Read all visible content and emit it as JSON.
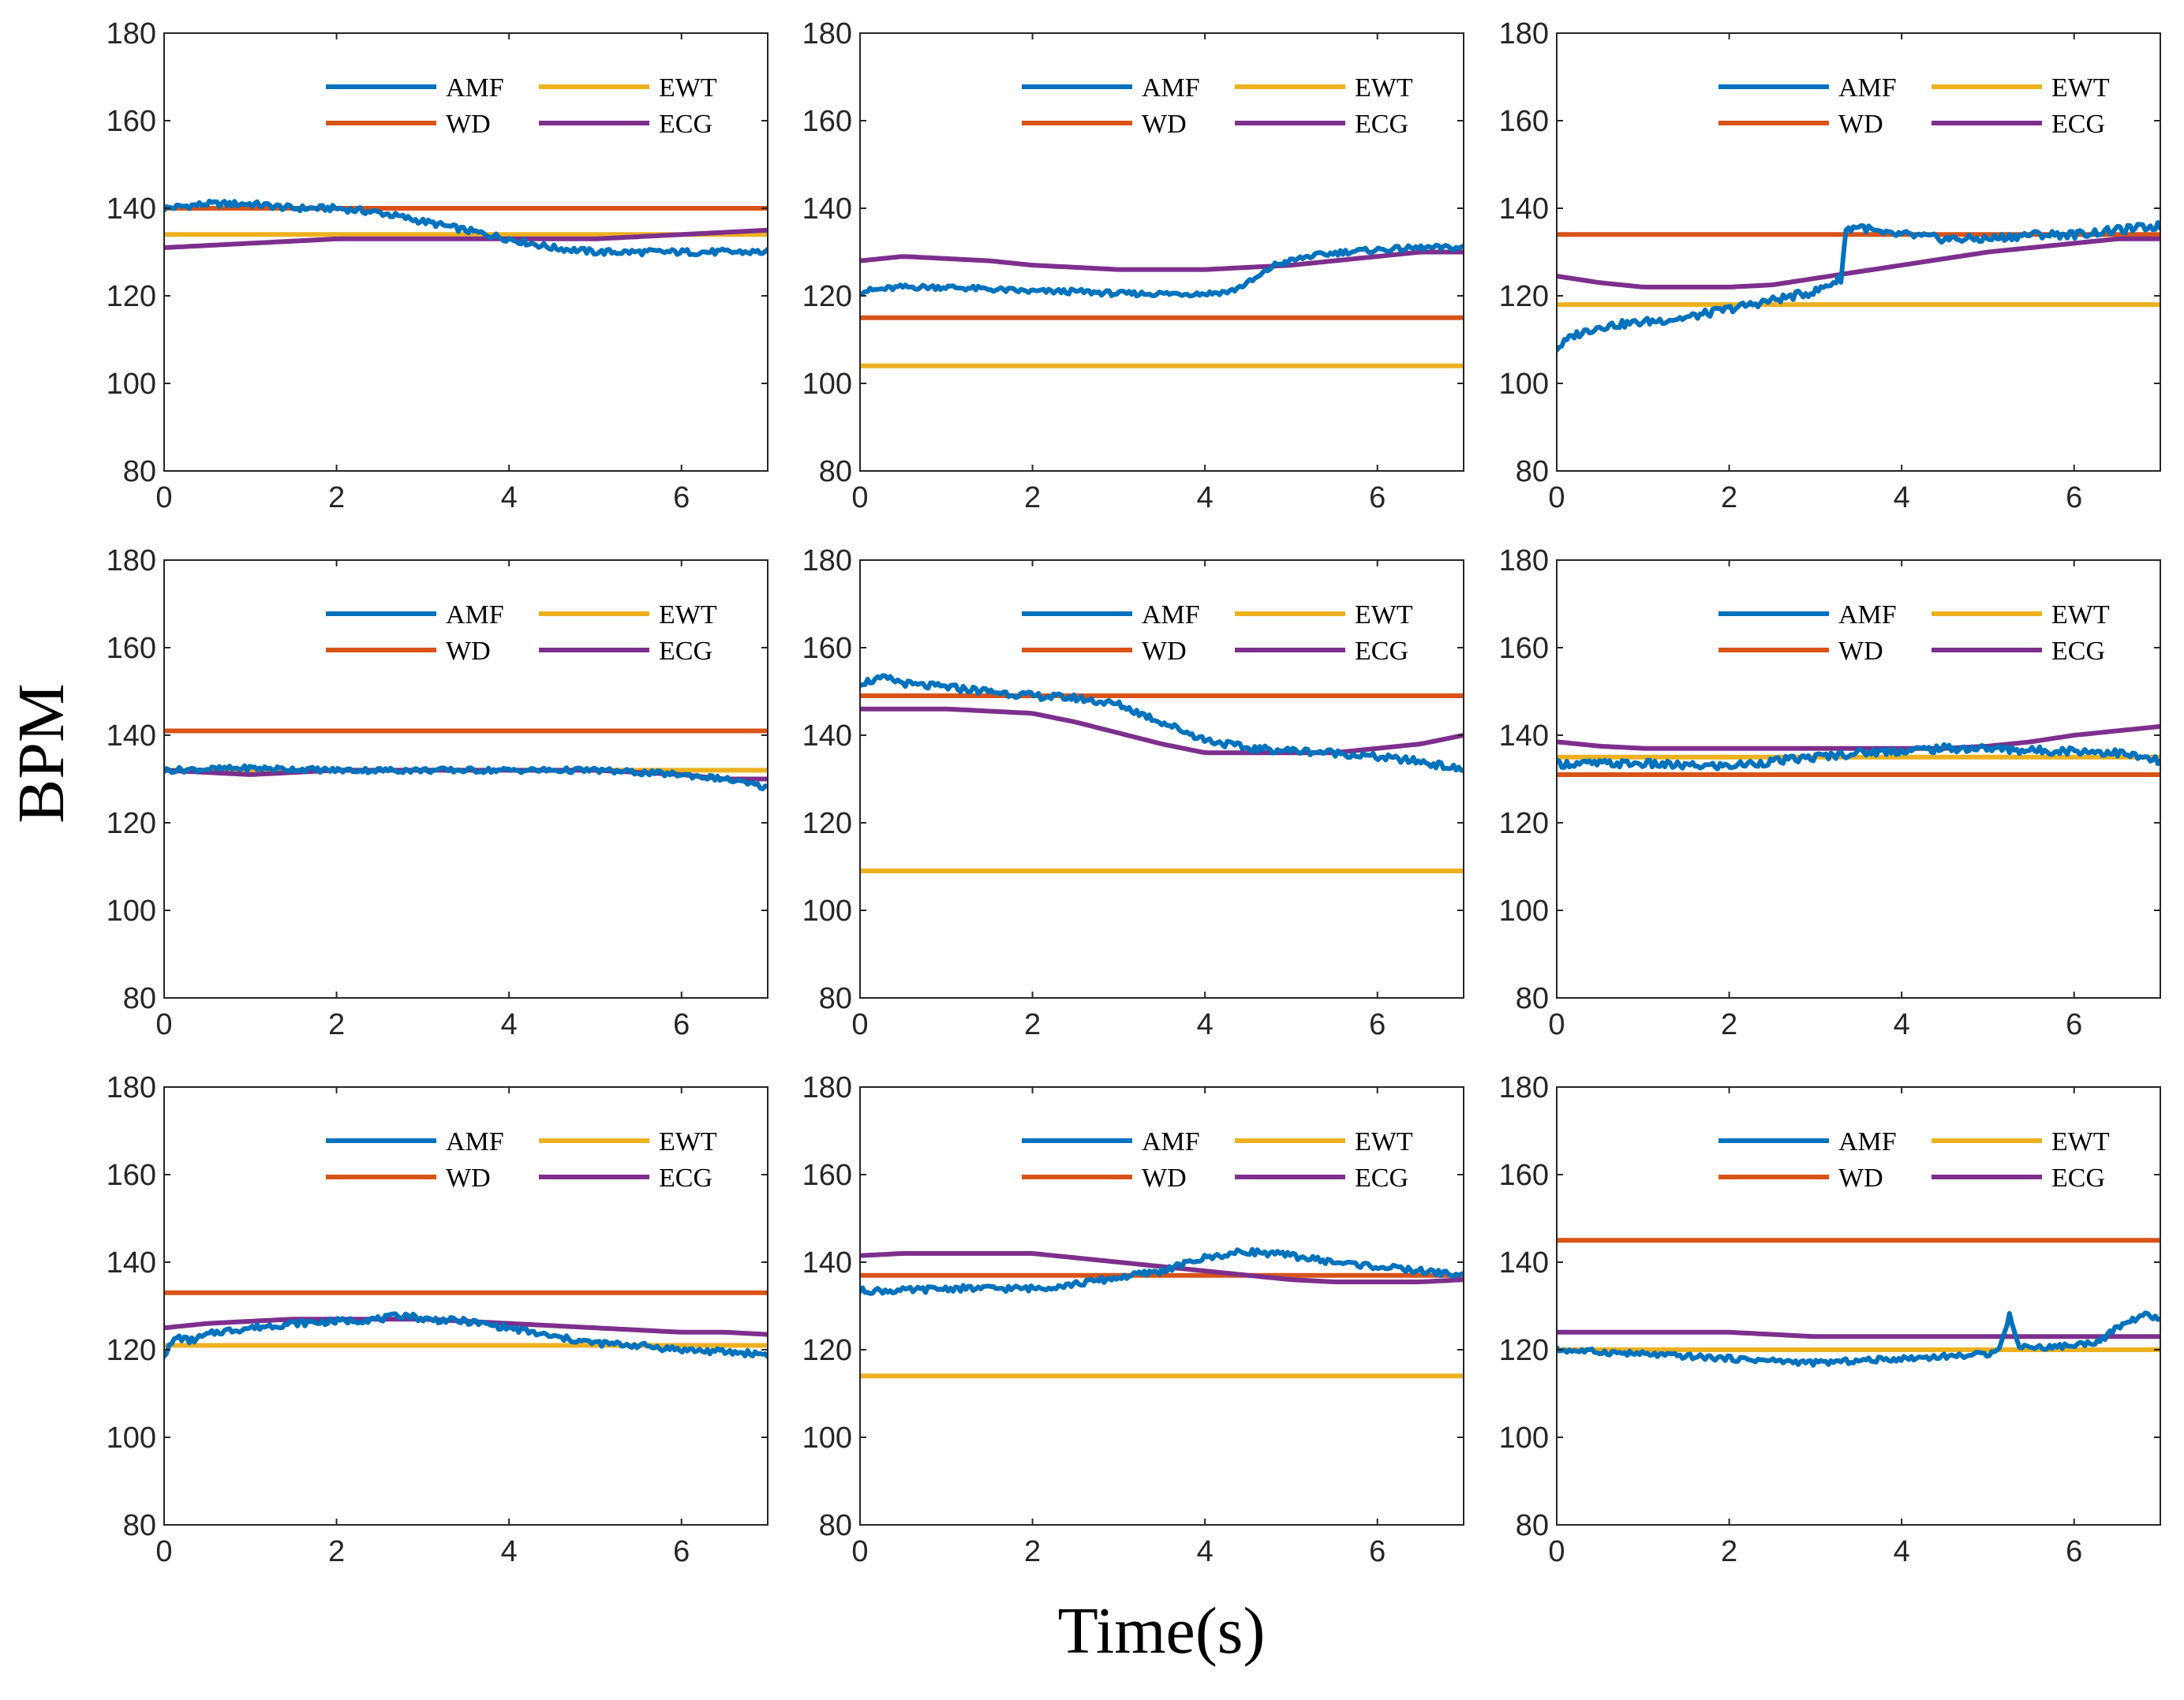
{
  "figure": {
    "ylabel": "BPM",
    "xlabel": "Time(s)"
  },
  "colors": {
    "AMF": "#0072BD",
    "WD": "#D95319",
    "EWT": "#EDB120",
    "ECG": "#7E2F8E"
  },
  "chart_data": [
    {
      "type": "line",
      "xlim": [
        0,
        7
      ],
      "ylim": [
        80,
        180
      ],
      "xticks": [
        "0",
        "2",
        "4",
        "6"
      ],
      "yticks": [
        "80",
        "100",
        "120",
        "140",
        "160",
        "180"
      ],
      "legend": [
        "AMF",
        "WD",
        "EWT",
        "ECG"
      ],
      "series": [
        {
          "name": "AMF",
          "x": [
            0,
            0.5,
            1,
            1.5,
            2,
            2.5,
            3,
            3.5,
            4,
            4.5,
            5,
            5.5,
            6,
            6.5,
            7
          ],
          "y": [
            140,
            141,
            141,
            140,
            140,
            139,
            137,
            135,
            133,
            131,
            130,
            130,
            130,
            130,
            130
          ],
          "noise": 0.7
        },
        {
          "name": "WD",
          "x": [
            0,
            7
          ],
          "y": [
            140,
            140
          ]
        },
        {
          "name": "EWT",
          "x": [
            0,
            7
          ],
          "y": [
            134,
            134
          ]
        },
        {
          "name": "ECG",
          "x": [
            0,
            0.5,
            1,
            1.5,
            2,
            3,
            4,
            5,
            6,
            7
          ],
          "y": [
            131,
            131.5,
            132,
            132.5,
            133,
            133,
            133,
            133,
            134,
            135
          ]
        }
      ]
    },
    {
      "type": "line",
      "xlim": [
        0,
        7
      ],
      "ylim": [
        80,
        180
      ],
      "xticks": [
        "0",
        "2",
        "4",
        "6"
      ],
      "yticks": [
        "80",
        "100",
        "120",
        "140",
        "160",
        "180"
      ],
      "legend": [
        "AMF",
        "WD",
        "EWT",
        "ECG"
      ],
      "series": [
        {
          "name": "AMF",
          "x": [
            0,
            0.5,
            1,
            1.5,
            2,
            2.5,
            3,
            3.5,
            4,
            4.3,
            4.6,
            4.8,
            5.2,
            5.6,
            6,
            6.5,
            7
          ],
          "y": [
            121,
            122,
            122,
            121.5,
            121,
            121,
            120.5,
            120.5,
            120.5,
            121,
            124,
            127,
            129,
            130,
            130.5,
            131,
            131
          ],
          "noise": 0.6
        },
        {
          "name": "WD",
          "x": [
            0,
            7
          ],
          "y": [
            115,
            115
          ]
        },
        {
          "name": "EWT",
          "x": [
            0,
            7
          ],
          "y": [
            104,
            104
          ]
        },
        {
          "name": "ECG",
          "x": [
            0,
            0.5,
            1,
            1.5,
            2,
            2.5,
            3,
            3.5,
            4,
            4.5,
            5,
            5.5,
            6,
            6.5,
            7
          ],
          "y": [
            128,
            129,
            128.5,
            128,
            127,
            126.5,
            126,
            126,
            126,
            126.5,
            127,
            128,
            129,
            130,
            130
          ]
        }
      ]
    },
    {
      "type": "line",
      "xlim": [
        0,
        7
      ],
      "ylim": [
        80,
        180
      ],
      "xticks": [
        "0",
        "2",
        "4",
        "6"
      ],
      "yticks": [
        "80",
        "100",
        "120",
        "140",
        "160",
        "180"
      ],
      "legend": [
        "AMF",
        "WD",
        "EWT",
        "ECG"
      ],
      "series": [
        {
          "name": "AMF",
          "x": [
            0,
            0.2,
            0.5,
            1,
            1.5,
            2,
            2.5,
            3,
            3.3,
            3.35,
            3.5,
            3.8,
            4,
            4.5,
            5,
            5.5,
            6,
            6.5,
            7
          ],
          "y": [
            108,
            111,
            113,
            114,
            115,
            117,
            119,
            121,
            124,
            135,
            136,
            134,
            134,
            133,
            133,
            134,
            134,
            135,
            136
          ],
          "noise": 0.9
        },
        {
          "name": "WD",
          "x": [
            0,
            7
          ],
          "y": [
            134,
            134
          ]
        },
        {
          "name": "EWT",
          "x": [
            0,
            7
          ],
          "y": [
            118,
            118
          ]
        },
        {
          "name": "ECG",
          "x": [
            0,
            0.5,
            1,
            1.5,
            2,
            2.5,
            3,
            3.5,
            4,
            4.5,
            5,
            5.5,
            6,
            6.5,
            7
          ],
          "y": [
            124.5,
            123,
            122,
            122,
            122,
            122.5,
            124,
            125.5,
            127,
            128.5,
            130,
            131,
            132,
            133,
            133
          ]
        }
      ]
    },
    {
      "type": "line",
      "xlim": [
        0,
        7
      ],
      "ylim": [
        80,
        180
      ],
      "xticks": [
        "0",
        "2",
        "4",
        "6"
      ],
      "yticks": [
        "80",
        "100",
        "120",
        "140",
        "160",
        "180"
      ],
      "legend": [
        "AMF",
        "WD",
        "EWT",
        "ECG"
      ],
      "series": [
        {
          "name": "AMF",
          "x": [
            0,
            1,
            2,
            3,
            4,
            5,
            6,
            6.5,
            7
          ],
          "y": [
            132,
            132.5,
            132,
            132,
            132,
            132,
            131,
            130,
            128
          ],
          "noise": 0.6
        },
        {
          "name": "WD",
          "x": [
            0,
            7
          ],
          "y": [
            141,
            141
          ]
        },
        {
          "name": "EWT",
          "x": [
            0,
            7
          ],
          "y": [
            132,
            132
          ]
        },
        {
          "name": "ECG",
          "x": [
            0,
            0.5,
            1,
            1.5,
            2,
            3,
            4,
            5,
            6,
            6.5,
            7
          ],
          "y": [
            132,
            131.5,
            131,
            131.5,
            132,
            132,
            132,
            132,
            131,
            130,
            130
          ]
        }
      ]
    },
    {
      "type": "line",
      "xlim": [
        0,
        7
      ],
      "ylim": [
        80,
        180
      ],
      "xticks": [
        "0",
        "2",
        "4",
        "6"
      ],
      "yticks": [
        "80",
        "100",
        "120",
        "140",
        "160",
        "180"
      ],
      "legend": [
        "AMF",
        "WD",
        "EWT",
        "ECG"
      ],
      "series": [
        {
          "name": "AMF",
          "x": [
            0,
            0.3,
            0.6,
            1,
            1.5,
            2,
            2.5,
            3,
            3.5,
            4,
            4.5,
            5,
            5.5,
            6,
            6.5,
            7
          ],
          "y": [
            152,
            153,
            151.5,
            151,
            150,
            149,
            148.5,
            147,
            143,
            139,
            137,
            136.5,
            136,
            135,
            134,
            132
          ],
          "noise": 0.8
        },
        {
          "name": "WD",
          "x": [
            0,
            7
          ],
          "y": [
            149,
            149
          ]
        },
        {
          "name": "EWT",
          "x": [
            0,
            7
          ],
          "y": [
            109,
            109
          ]
        },
        {
          "name": "ECG",
          "x": [
            0,
            0.5,
            1,
            1.5,
            2,
            2.5,
            3,
            3.5,
            4,
            4.5,
            5,
            5.5,
            6,
            6.5,
            7
          ],
          "y": [
            146,
            146,
            146,
            145.5,
            145,
            143,
            140.5,
            138,
            136,
            136,
            136,
            136,
            137,
            138,
            140
          ]
        }
      ]
    },
    {
      "type": "line",
      "xlim": [
        0,
        7
      ],
      "ylim": [
        80,
        180
      ],
      "xticks": [
        "0",
        "2",
        "4",
        "6"
      ],
      "yticks": [
        "80",
        "100",
        "120",
        "140",
        "160",
        "180"
      ],
      "legend": [
        "AMF",
        "WD",
        "EWT",
        "ECG"
      ],
      "series": [
        {
          "name": "AMF",
          "x": [
            0,
            0.5,
            1,
            1.5,
            2,
            2.5,
            3,
            3.5,
            4,
            4.5,
            5,
            5.5,
            6,
            6.5,
            7
          ],
          "y": [
            133.5,
            133.5,
            133.5,
            133,
            133,
            134,
            135,
            136,
            136.5,
            137,
            137,
            136.5,
            136.5,
            136,
            134
          ],
          "noise": 0.9
        },
        {
          "name": "WD",
          "x": [
            0,
            7
          ],
          "y": [
            131,
            131
          ]
        },
        {
          "name": "EWT",
          "x": [
            0,
            7
          ],
          "y": [
            135,
            135
          ]
        },
        {
          "name": "ECG",
          "x": [
            0,
            0.5,
            1,
            1.5,
            2,
            3,
            4,
            4.5,
            5,
            5.5,
            6,
            6.5,
            7
          ],
          "y": [
            138.5,
            137.5,
            137,
            137,
            137,
            137,
            137,
            137,
            137.5,
            138.5,
            140,
            141,
            142
          ]
        }
      ]
    },
    {
      "type": "line",
      "xlim": [
        0,
        7
      ],
      "ylim": [
        80,
        180
      ],
      "xticks": [
        "0",
        "2",
        "4",
        "6"
      ],
      "yticks": [
        "80",
        "100",
        "120",
        "140",
        "160",
        "180"
      ],
      "legend": [
        "AMF",
        "WD",
        "EWT",
        "ECG"
      ],
      "series": [
        {
          "name": "AMF",
          "x": [
            0,
            0.15,
            0.3,
            0.6,
            1,
            1.5,
            2,
            2.5,
            2.8,
            3,
            3.5,
            4,
            4.5,
            5,
            5.5,
            6,
            6.5,
            7
          ],
          "y": [
            119,
            123,
            122,
            124,
            125,
            126,
            126.5,
            127,
            128,
            127,
            126.5,
            125,
            123,
            121.5,
            121,
            120,
            119.5,
            119
          ],
          "noise": 0.7
        },
        {
          "name": "WD",
          "x": [
            0,
            7
          ],
          "y": [
            133,
            133
          ]
        },
        {
          "name": "EWT",
          "x": [
            0,
            7
          ],
          "y": [
            121,
            121
          ]
        },
        {
          "name": "ECG",
          "x": [
            0,
            0.5,
            1,
            1.5,
            2,
            2.5,
            3,
            3.5,
            4,
            4.5,
            5,
            5.5,
            6,
            6.5,
            7
          ],
          "y": [
            125,
            126,
            126.5,
            127,
            127,
            127,
            127,
            126.5,
            126,
            125.5,
            125,
            124.5,
            124,
            124,
            123.5
          ]
        }
      ]
    },
    {
      "type": "line",
      "xlim": [
        0,
        7
      ],
      "ylim": [
        80,
        180
      ],
      "xticks": [
        "0",
        "2",
        "4",
        "6"
      ],
      "yticks": [
        "80",
        "100",
        "120",
        "140",
        "160",
        "180"
      ],
      "legend": [
        "AMF",
        "WD",
        "EWT",
        "ECG"
      ],
      "series": [
        {
          "name": "AMF",
          "x": [
            0,
            0.5,
            1,
            1.5,
            2,
            2.5,
            3,
            3.5,
            4,
            4.5,
            5,
            5.5,
            6,
            6.5,
            7
          ],
          "y": [
            133.5,
            133.5,
            134,
            134,
            134,
            135,
            136.5,
            138,
            141,
            142.5,
            141.5,
            140,
            139,
            138,
            137
          ],
          "noise": 0.7
        },
        {
          "name": "WD",
          "x": [
            0,
            7
          ],
          "y": [
            137,
            137
          ]
        },
        {
          "name": "EWT",
          "x": [
            0,
            7
          ],
          "y": [
            114,
            114
          ]
        },
        {
          "name": "ECG",
          "x": [
            0,
            0.5,
            1,
            1.5,
            2,
            2.5,
            3,
            3.5,
            4,
            4.5,
            5,
            5.5,
            6,
            6.5,
            7
          ],
          "y": [
            141.5,
            142,
            142,
            142,
            142,
            141,
            140,
            139,
            138,
            137,
            136,
            135.5,
            135.5,
            135.5,
            136
          ]
        }
      ]
    },
    {
      "type": "line",
      "xlim": [
        0,
        7
      ],
      "ylim": [
        80,
        180
      ],
      "xticks": [
        "0",
        "2",
        "4",
        "6"
      ],
      "yticks": [
        "80",
        "100",
        "120",
        "140",
        "160",
        "180"
      ],
      "legend": [
        "AMF",
        "WD",
        "EWT",
        "ECG"
      ],
      "series": [
        {
          "name": "AMF",
          "x": [
            0,
            0.5,
            1,
            1.5,
            2,
            2.5,
            3,
            3.5,
            4,
            4.5,
            5,
            5.15,
            5.25,
            5.35,
            5.6,
            6,
            6.3,
            6.5,
            6.8,
            7
          ],
          "y": [
            120,
            119.5,
            119,
            118.5,
            118,
            117.5,
            117,
            117.5,
            118,
            118.5,
            119,
            121,
            128,
            121,
            120.5,
            121,
            122,
            125,
            128,
            127
          ],
          "noise": 0.6
        },
        {
          "name": "WD",
          "x": [
            0,
            7
          ],
          "y": [
            145,
            145
          ]
        },
        {
          "name": "EWT",
          "x": [
            0,
            7
          ],
          "y": [
            120,
            120
          ]
        },
        {
          "name": "ECG",
          "x": [
            0,
            1,
            2,
            2.5,
            3,
            4,
            5,
            6,
            7
          ],
          "y": [
            124,
            124,
            124,
            123.5,
            123,
            123,
            123,
            123,
            123
          ]
        }
      ]
    }
  ]
}
